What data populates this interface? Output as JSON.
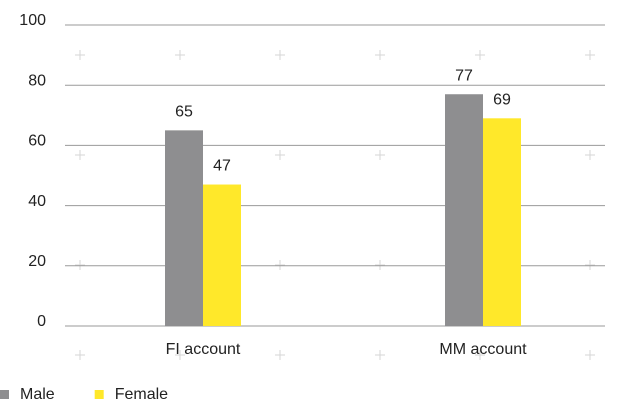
{
  "chart_data": {
    "type": "bar",
    "categories": [
      "FI account",
      "MM account"
    ],
    "series": [
      {
        "name": "Male",
        "color": "#8e8e90",
        "values": [
          65,
          77
        ]
      },
      {
        "name": "Female",
        "color": "#ffe82a",
        "values": [
          47,
          69
        ]
      }
    ],
    "ylim": [
      0,
      100
    ],
    "yticks": [
      0,
      20,
      40,
      60,
      80,
      100
    ],
    "grid": true,
    "legend": "bottom-left"
  }
}
